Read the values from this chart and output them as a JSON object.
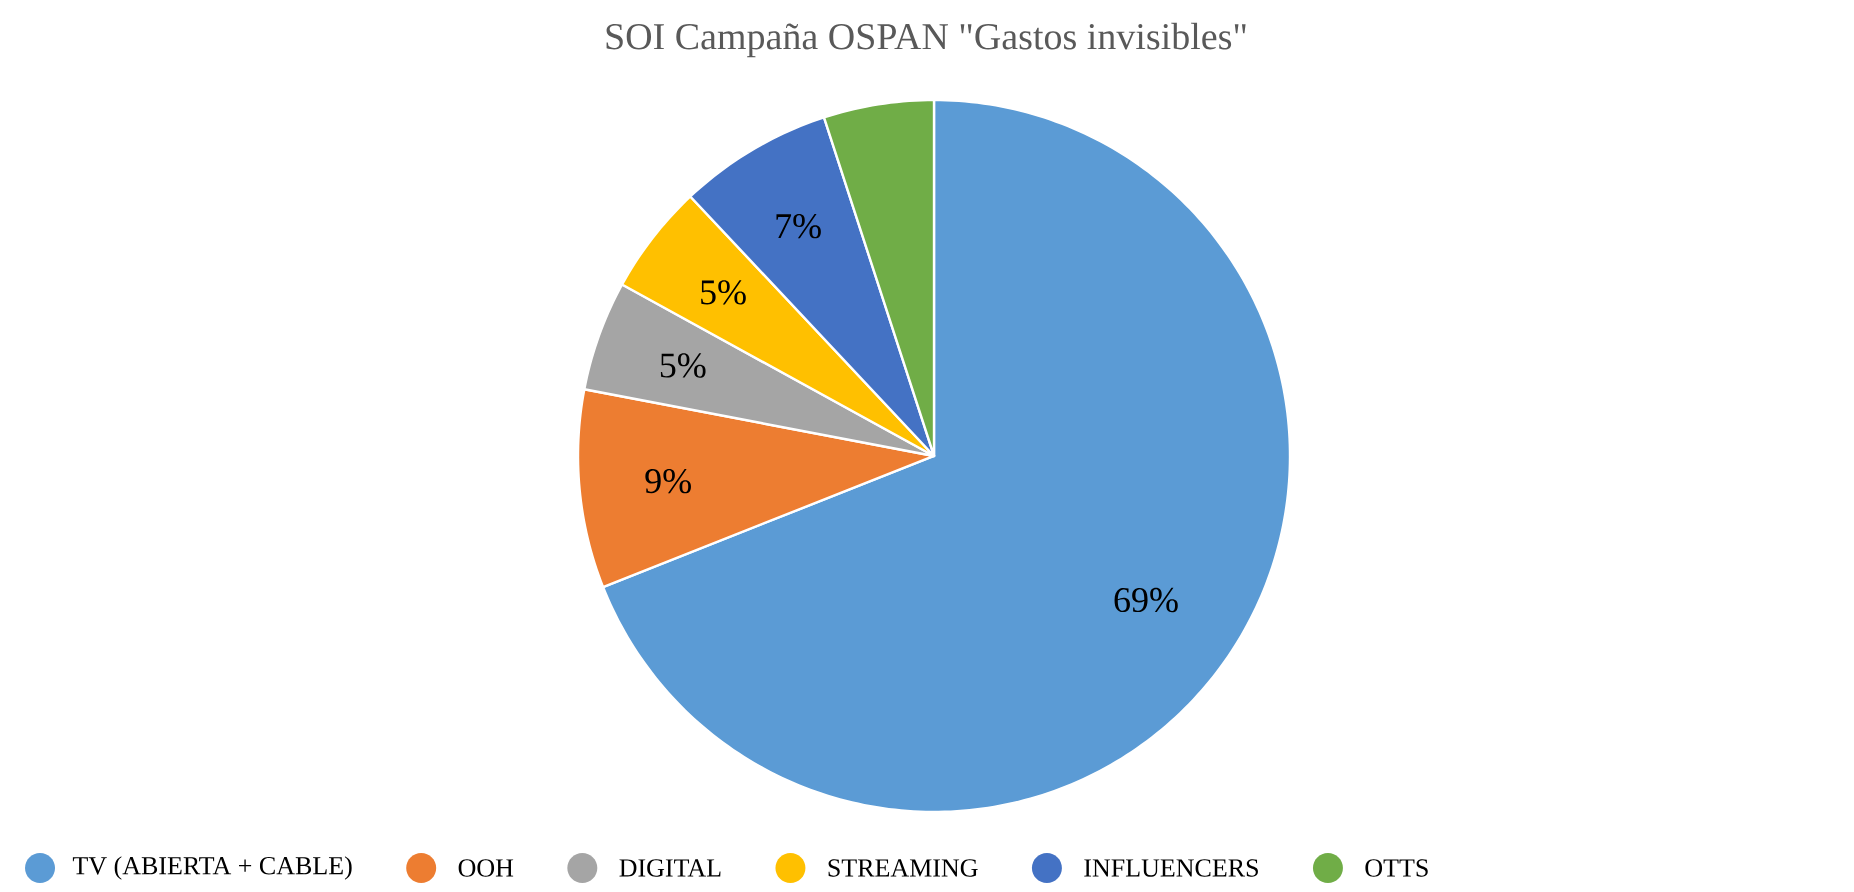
{
  "chart_data": {
    "type": "pie",
    "title": "SOI Campaña OSPAN \"Gastos invisibles\"",
    "categories": [
      "TV (ABIERTA + CABLE)",
      "OOH",
      "DIGITAL",
      "STREAMING",
      "INFLUENCERS",
      "OTTS"
    ],
    "values": [
      69,
      9,
      5,
      5,
      7,
      5
    ],
    "colors": [
      "#5b9bd5",
      "#ed7d31",
      "#a5a5a5",
      "#ffc000",
      "#4472c4",
      "#70ad47"
    ],
    "value_labels": [
      "69%",
      "9%",
      "5%",
      "5%",
      "7%",
      null
    ],
    "legend": "bottom"
  }
}
